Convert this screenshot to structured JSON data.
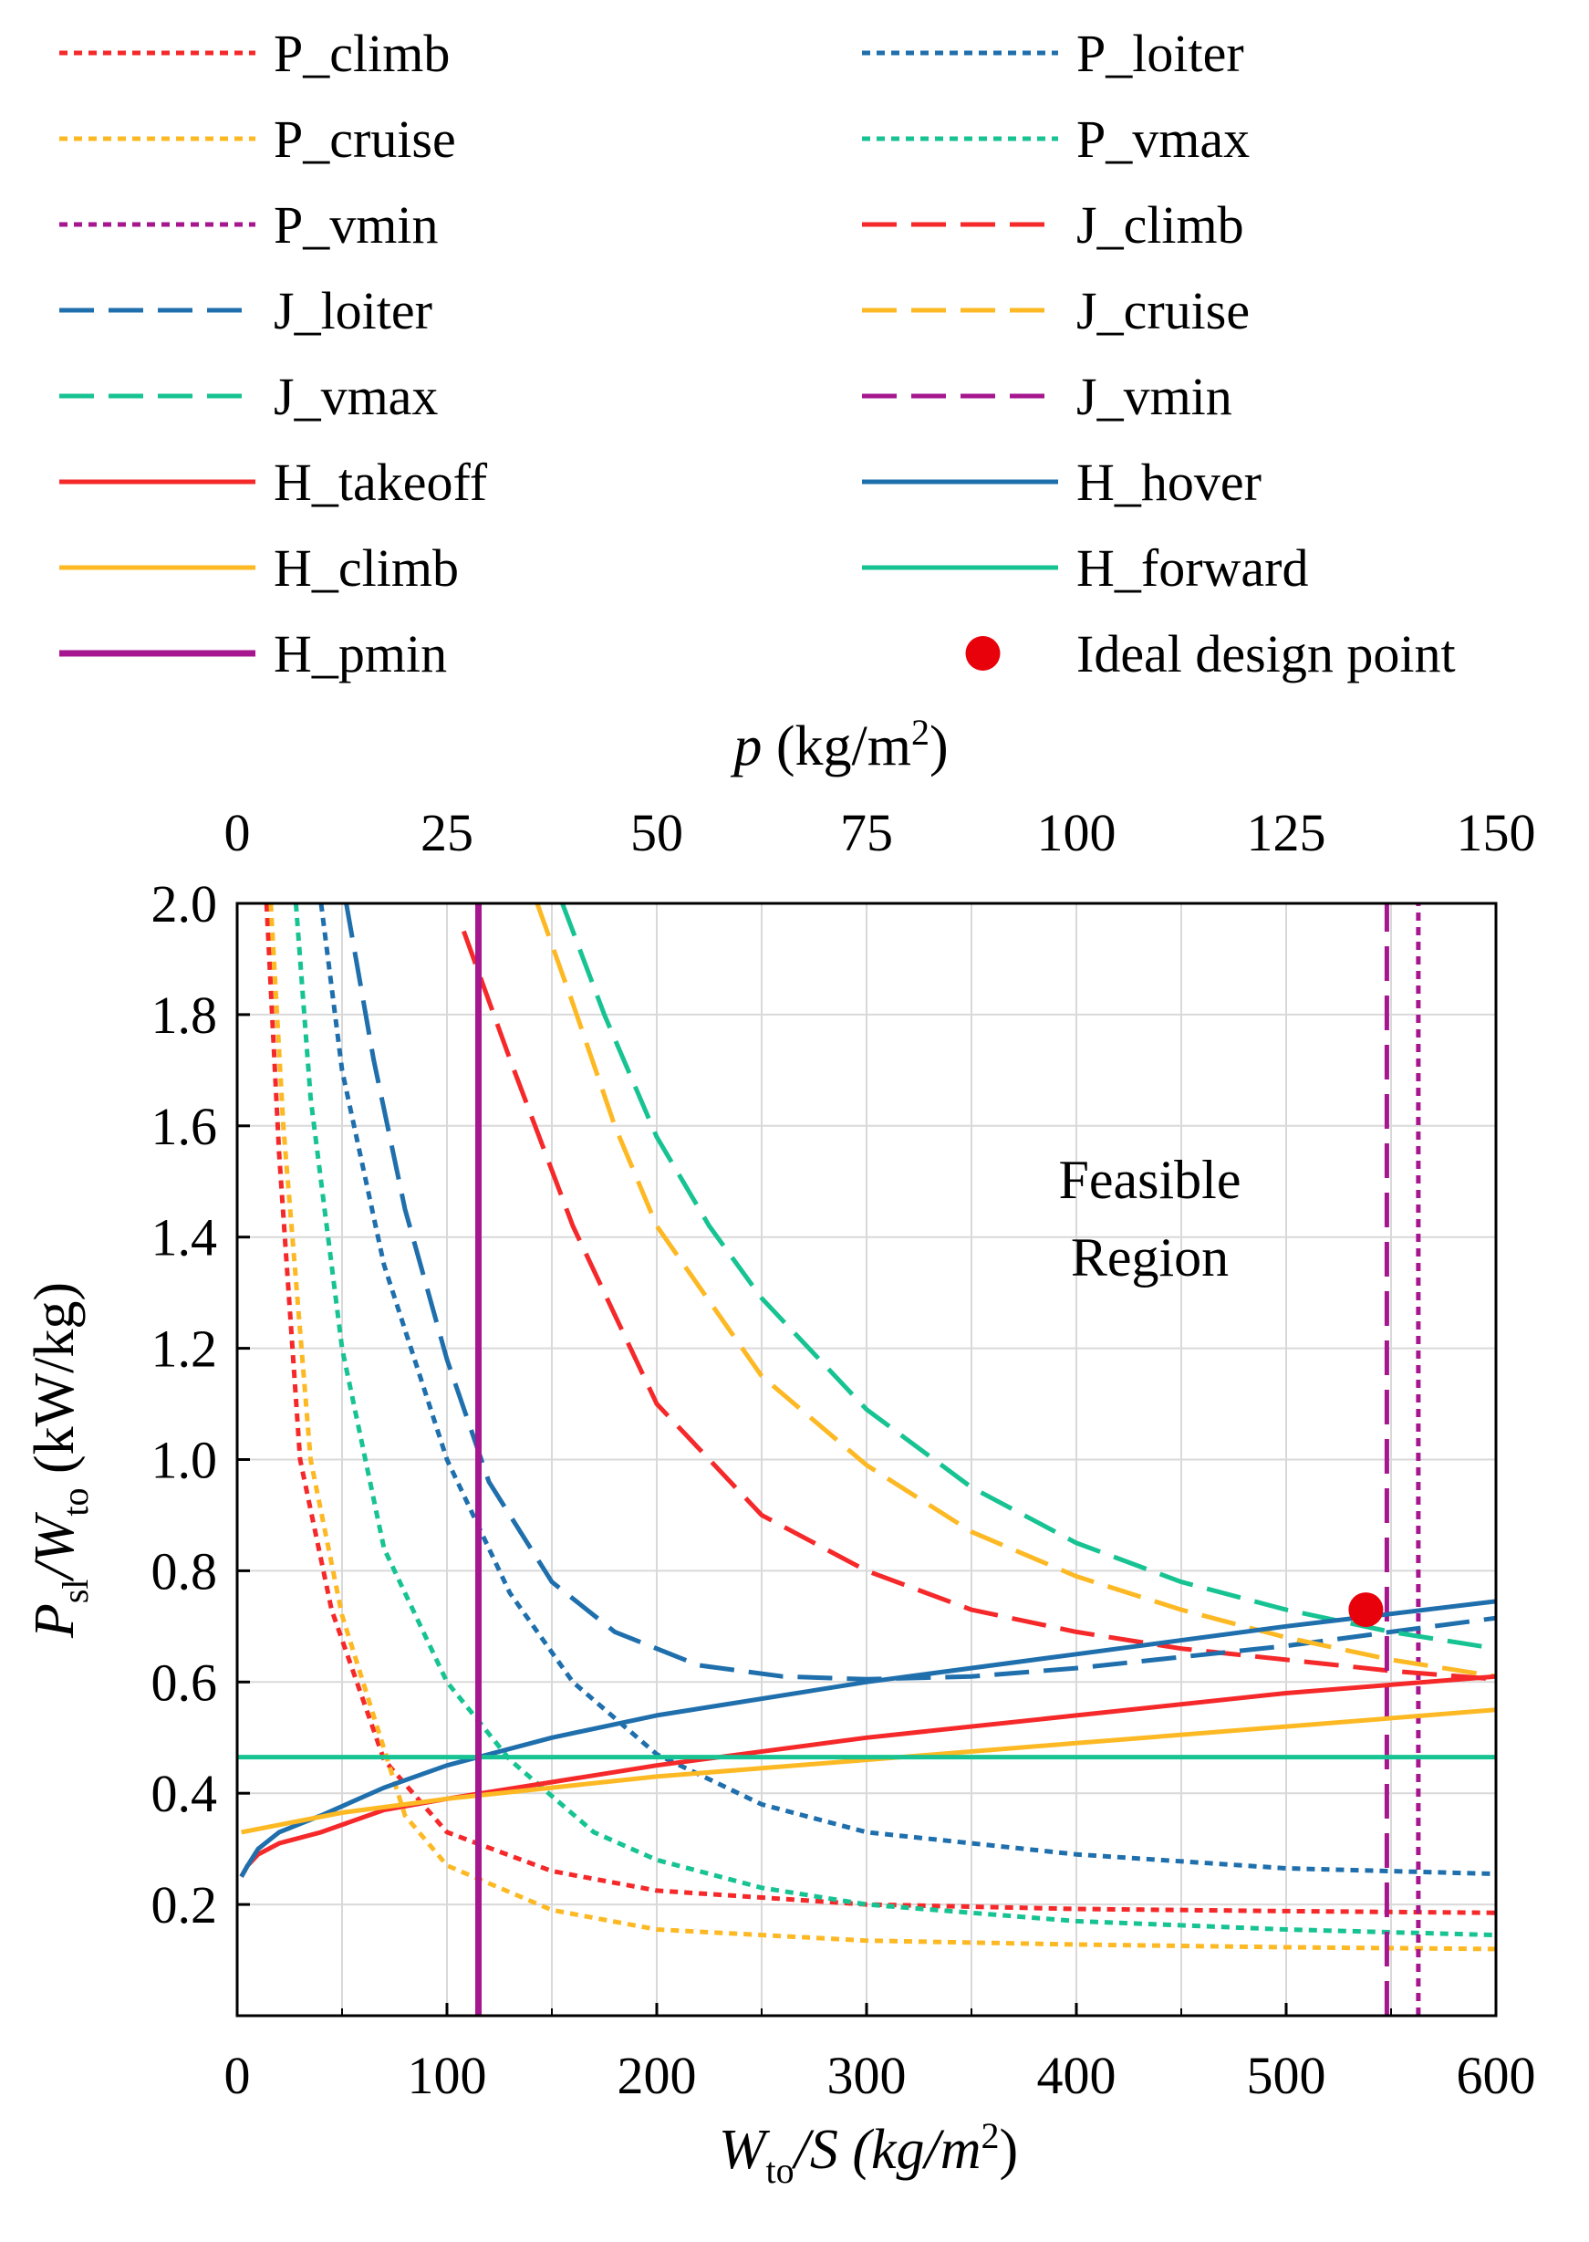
{
  "chart_data": {
    "type": "line",
    "x_axis": {
      "label_main": "W",
      "label_sub": "to",
      "label_rest": "/S (kg/m",
      "label_sup": "2",
      "label_close": ")",
      "range": [
        0,
        600
      ],
      "ticks": [
        "0",
        "100",
        "200",
        "300",
        "400",
        "500",
        "600"
      ],
      "tick_values": [
        0,
        100,
        200,
        300,
        400,
        500,
        600
      ]
    },
    "top_axis": {
      "label_main": "p",
      "label_rest": " (kg/m",
      "label_sup": "2",
      "label_close": ")",
      "range": [
        0,
        150
      ],
      "ticks": [
        "0",
        "25",
        "50",
        "75",
        "100",
        "125",
        "150"
      ],
      "tick_values": [
        0,
        25,
        50,
        75,
        100,
        125,
        150
      ]
    },
    "y_axis": {
      "label_p": "P",
      "label_p_sub": "sl",
      "label_w": "/W",
      "label_w_sub": "to",
      "label_unit": " (kW/kg)",
      "range": [
        0.0,
        2.0
      ],
      "ticks": [
        "0.2",
        "0.4",
        "0.6",
        "0.8",
        "1.0",
        "1.2",
        "1.4",
        "1.6",
        "1.8",
        "2.0"
      ],
      "tick_values": [
        0.2,
        0.4,
        0.6,
        0.8,
        1.0,
        1.2,
        1.4,
        1.6,
        1.8,
        2.0
      ]
    },
    "grid": true,
    "annotation": {
      "line1": "Feasible",
      "line2": "Region",
      "x": 435,
      "y": 1.5
    },
    "design_point": {
      "label": "Ideal design point",
      "x": 538,
      "y": 0.73,
      "color": "#e8000b"
    },
    "series": [
      {
        "name": "P_climb",
        "color": "#f5282a",
        "style": "dotted",
        "x": [
          14,
          20,
          30,
          45,
          70,
          100,
          150,
          200,
          300,
          400,
          500,
          600
        ],
        "y": [
          2.0,
          1.55,
          1.0,
          0.73,
          0.46,
          0.33,
          0.26,
          0.225,
          0.2,
          0.192,
          0.188,
          0.185
        ]
      },
      {
        "name": "P_loiter",
        "color": "#1f6fad",
        "style": "dotted",
        "x": [
          40,
          50,
          70,
          100,
          130,
          160,
          200,
          250,
          300,
          400,
          500,
          600
        ],
        "y": [
          2.0,
          1.7,
          1.35,
          1.0,
          0.76,
          0.6,
          0.47,
          0.38,
          0.33,
          0.29,
          0.265,
          0.255
        ]
      },
      {
        "name": "P_cruise",
        "color": "#fdb924",
        "style": "dotted",
        "x": [
          16,
          22,
          35,
          50,
          80,
          100,
          150,
          200,
          300,
          400,
          500,
          600
        ],
        "y": [
          2.0,
          1.6,
          1.0,
          0.72,
          0.36,
          0.27,
          0.19,
          0.155,
          0.135,
          0.128,
          0.123,
          0.12
        ]
      },
      {
        "name": "P_vmax",
        "color": "#17c392",
        "style": "dotted",
        "x": [
          28,
          35,
          50,
          70,
          100,
          130,
          170,
          200,
          250,
          300,
          400,
          500,
          600
        ],
        "y": [
          2.0,
          1.65,
          1.2,
          0.84,
          0.6,
          0.46,
          0.33,
          0.28,
          0.23,
          0.2,
          0.17,
          0.155,
          0.145
        ]
      },
      {
        "name": "P_vmin",
        "color": "#a6168f",
        "style": "dotted",
        "x": [
          563,
          563
        ],
        "y": [
          0.0,
          2.0
        ]
      },
      {
        "name": "J_climb",
        "color": "#f5282a",
        "style": "dashed",
        "x": [
          108,
          130,
          160,
          200,
          250,
          300,
          350,
          400,
          450,
          500,
          550,
          600
        ],
        "y": [
          1.95,
          1.72,
          1.42,
          1.1,
          0.9,
          0.8,
          0.73,
          0.69,
          0.66,
          0.64,
          0.62,
          0.605
        ]
      },
      {
        "name": "J_loiter",
        "color": "#1f6fad",
        "style": "dashed",
        "x": [
          52,
          65,
          80,
          100,
          120,
          150,
          180,
          220,
          260,
          300,
          350,
          400,
          450,
          500,
          550,
          600
        ],
        "y": [
          2.0,
          1.72,
          1.45,
          1.18,
          0.96,
          0.78,
          0.69,
          0.63,
          0.61,
          0.605,
          0.61,
          0.625,
          0.645,
          0.665,
          0.69,
          0.715
        ]
      },
      {
        "name": "J_cruise",
        "color": "#fdb924",
        "style": "dashed",
        "x": [
          143,
          160,
          180,
          200,
          250,
          300,
          350,
          400,
          450,
          500,
          550,
          600
        ],
        "y": [
          2.0,
          1.82,
          1.6,
          1.42,
          1.15,
          0.99,
          0.87,
          0.79,
          0.73,
          0.68,
          0.64,
          0.61
        ]
      },
      {
        "name": "J_vmax",
        "color": "#17c392",
        "style": "dashed",
        "x": [
          155,
          175,
          200,
          225,
          250,
          300,
          350,
          400,
          450,
          500,
          550,
          600
        ],
        "y": [
          2.0,
          1.8,
          1.58,
          1.42,
          1.29,
          1.09,
          0.95,
          0.85,
          0.78,
          0.73,
          0.69,
          0.66
        ]
      },
      {
        "name": "J_vmin",
        "color": "#a6168f",
        "style": "dashed",
        "x": [
          548,
          548
        ],
        "y": [
          0.0,
          2.0
        ]
      },
      {
        "name": "H_takeoff",
        "color": "#f5282a",
        "style": "solid",
        "x": [
          2,
          5,
          10,
          20,
          40,
          70,
          100,
          150,
          200,
          300,
          400,
          500,
          600
        ],
        "y": [
          0.25,
          0.27,
          0.29,
          0.31,
          0.33,
          0.37,
          0.39,
          0.42,
          0.45,
          0.5,
          0.54,
          0.58,
          0.61
        ]
      },
      {
        "name": "H_hover",
        "color": "#1f6fad",
        "style": "solid",
        "x": [
          2,
          5,
          10,
          20,
          40,
          70,
          100,
          150,
          200,
          300,
          400,
          500,
          600
        ],
        "y": [
          0.25,
          0.27,
          0.3,
          0.33,
          0.36,
          0.41,
          0.45,
          0.5,
          0.54,
          0.6,
          0.65,
          0.7,
          0.745
        ]
      },
      {
        "name": "H_climb",
        "color": "#fdb924",
        "style": "solid",
        "x": [
          2,
          50,
          100,
          150,
          200,
          300,
          400,
          500,
          600
        ],
        "y": [
          0.33,
          0.365,
          0.39,
          0.41,
          0.43,
          0.46,
          0.49,
          0.52,
          0.55
        ]
      },
      {
        "name": "H_forward",
        "color": "#17c392",
        "style": "solid",
        "x": [
          0,
          600
        ],
        "y": [
          0.465,
          0.465
        ]
      },
      {
        "name": "H_pmin",
        "color": "#a6168f",
        "style": "solid",
        "thick": true,
        "x": [
          115,
          115
        ],
        "y": [
          0.0,
          2.0
        ]
      }
    ]
  }
}
